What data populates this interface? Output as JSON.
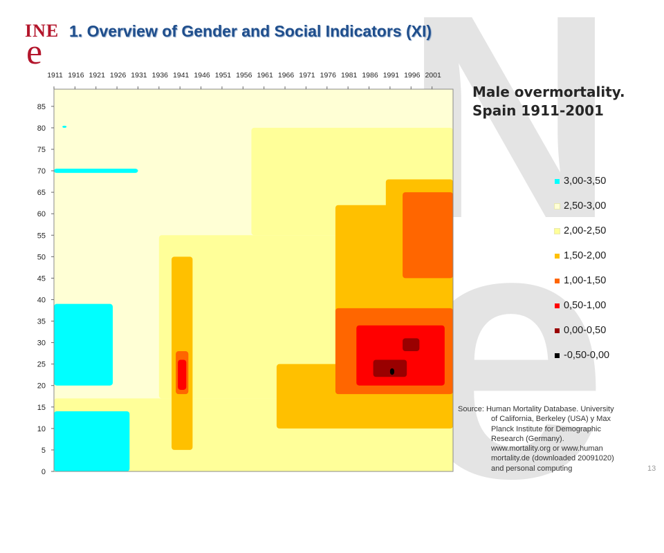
{
  "header": {
    "logo_text_top": "INE",
    "logo_text_bottom": "e",
    "title": "1. Overview of Gender and Social Indicators (XI)"
  },
  "page_number": "13",
  "colors": {
    "title": "#1f4e8c",
    "logo": "#b3152b",
    "watermark": "#e4e4e4"
  },
  "source": {
    "label": "Source:",
    "lines": [
      "Human Mortality Database. University",
      "of California, Berkeley (USA) y Max",
      "Planck Institute for Demographic",
      "Research (Germany).",
      "www.mortality.org or www.human",
      "mortality.de (downloaded 20091020)",
      "and personal computing"
    ]
  },
  "chart_data": {
    "type": "heatmap",
    "title": "Male overmortality.",
    "subtitle": "Spain 1911-2001",
    "x_ticks": [
      "1911",
      "1916",
      "1921",
      "1926",
      "1931",
      "1936",
      "1941",
      "1946",
      "1951",
      "1956",
      "1961",
      "1966",
      "1971",
      "1976",
      "1981",
      "1986",
      "1991",
      "1996",
      "2001"
    ],
    "x_range": [
      1911,
      2006
    ],
    "y_ticks": [
      "0",
      "5",
      "10",
      "15",
      "20",
      "25",
      "30",
      "35",
      "40",
      "45",
      "50",
      "55",
      "60",
      "65",
      "70",
      "75",
      "80",
      "85"
    ],
    "y_range": [
      0,
      89
    ],
    "legend_position": "right",
    "legend": [
      {
        "label": "3,00-3,50",
        "color": "#00ffff"
      },
      {
        "label": "2,50-3,00",
        "color": "#ffffd5"
      },
      {
        "label": "2,00-2,50",
        "color": "#ffff99"
      },
      {
        "label": "1,50-2,00",
        "color": "#ffc000"
      },
      {
        "label": "1,00-1,50",
        "color": "#ff6600"
      },
      {
        "label": "0,50-1,00",
        "color": "#ff0000"
      },
      {
        "label": "0,00-0,50",
        "color": "#990000"
      },
      {
        "label": "-0,50-0,00",
        "color": "#000000"
      }
    ],
    "background_class": "2,50-3,00",
    "regions": [
      {
        "class": "2,00-2,50",
        "x": [
          1911,
          2006
        ],
        "y": [
          0,
          17
        ]
      },
      {
        "class": "2,00-2,50",
        "x": [
          1936,
          2006
        ],
        "y": [
          17,
          55
        ]
      },
      {
        "class": "2,00-2,50",
        "x": [
          1958,
          2006
        ],
        "y": [
          55,
          80
        ]
      },
      {
        "class": "3,00-3,50",
        "x": [
          1911,
          1929
        ],
        "y": [
          0,
          14
        ]
      },
      {
        "class": "3,00-3,50",
        "x": [
          1911,
          1925
        ],
        "y": [
          20,
          39
        ]
      },
      {
        "class": "3,00-3,50",
        "x": [
          1911,
          1931
        ],
        "y": [
          69.5,
          70.5
        ]
      },
      {
        "class": "3,00-3,50",
        "x": [
          1913,
          1914
        ],
        "y": [
          80,
          80.5
        ]
      },
      {
        "class": "1,50-2,00",
        "x": [
          1939,
          1944
        ],
        "y": [
          5,
          50
        ]
      },
      {
        "class": "1,50-2,00",
        "x": [
          1964,
          2006
        ],
        "y": [
          10,
          25
        ]
      },
      {
        "class": "1,50-2,00",
        "x": [
          1978,
          2006
        ],
        "y": [
          20,
          62
        ]
      },
      {
        "class": "1,50-2,00",
        "x": [
          1990,
          2006
        ],
        "y": [
          55,
          68
        ]
      },
      {
        "class": "1,00-1,50",
        "x": [
          1940,
          1943
        ],
        "y": [
          18,
          28
        ]
      },
      {
        "class": "1,00-1,50",
        "x": [
          1978,
          2006
        ],
        "y": [
          18,
          38
        ]
      },
      {
        "class": "1,00-1,50",
        "x": [
          1994,
          2006
        ],
        "y": [
          45,
          65
        ]
      },
      {
        "class": "0,50-1,00",
        "x": [
          1940.5,
          1942.5
        ],
        "y": [
          19,
          26
        ]
      },
      {
        "class": "0,50-1,00",
        "x": [
          1983,
          2004
        ],
        "y": [
          20,
          34
        ]
      },
      {
        "class": "0,00-0,50",
        "x": [
          1987,
          1995
        ],
        "y": [
          22,
          26
        ]
      },
      {
        "class": "0,00-0,50",
        "x": [
          1994,
          1998
        ],
        "y": [
          28,
          31
        ]
      },
      {
        "class": "-0,50-0,00",
        "x": [
          1991,
          1992
        ],
        "y": [
          22.5,
          24
        ]
      }
    ]
  }
}
